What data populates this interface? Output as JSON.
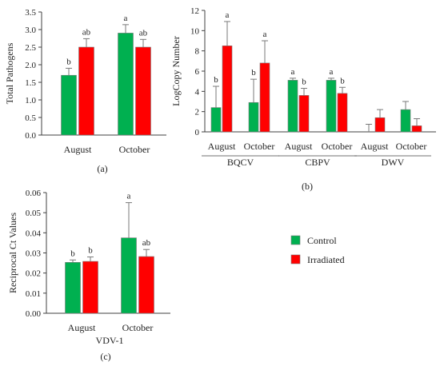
{
  "colors": {
    "control": "#00b050",
    "irradiated": "#ff0000",
    "bar_edge": "#7a7a7a",
    "axis": "#404040",
    "error": "#7a7a7a"
  },
  "legend": [
    {
      "name": "Control",
      "color": "#00b050"
    },
    {
      "name": "Irradiated",
      "color": "#ff0000"
    }
  ],
  "chart_data": [
    {
      "id": "a",
      "panel_label": "(a)",
      "type": "bar",
      "ylabel": "Total Pathogens",
      "ylim": [
        0,
        3.5
      ],
      "yticks": [
        "0.0",
        "0.5",
        "1.0",
        "1.5",
        "2.0",
        "2.5",
        "3.0",
        "3.5"
      ],
      "groups": [
        {
          "label": "August",
          "series": [
            {
              "name": "Control",
              "value": 1.7,
              "err": 0.2,
              "sig": "b"
            },
            {
              "name": "Irradiated",
              "value": 2.5,
              "err": 0.24,
              "sig": "ab"
            }
          ]
        },
        {
          "label": "October",
          "series": [
            {
              "name": "Control",
              "value": 2.9,
              "err": 0.24,
              "sig": "a"
            },
            {
              "name": "Irradiated",
              "value": 2.5,
              "err": 0.22,
              "sig": "ab"
            }
          ]
        }
      ],
      "virus_groups": []
    },
    {
      "id": "b",
      "panel_label": "(b)",
      "type": "bar",
      "ylabel": "LogCopy Number",
      "ylim": [
        0,
        12
      ],
      "yticks": [
        "0",
        "2",
        "4",
        "6",
        "8",
        "10",
        "12"
      ],
      "groups": [
        {
          "label": "August",
          "series": [
            {
              "name": "Control",
              "value": 2.4,
              "err": 2.1,
              "sig": "b"
            },
            {
              "name": "Irradiated",
              "value": 8.5,
              "err": 2.4,
              "sig": "a"
            }
          ]
        },
        {
          "label": "October",
          "series": [
            {
              "name": "Control",
              "value": 2.9,
              "err": 2.3,
              "sig": "b"
            },
            {
              "name": "Irradiated",
              "value": 6.8,
              "err": 2.2,
              "sig": "a"
            }
          ]
        },
        {
          "label": "August",
          "series": [
            {
              "name": "Control",
              "value": 5.1,
              "err": 0.2,
              "sig": "a"
            },
            {
              "name": "Irradiated",
              "value": 3.6,
              "err": 0.7,
              "sig": "b"
            }
          ]
        },
        {
          "label": "October",
          "series": [
            {
              "name": "Control",
              "value": 5.1,
              "err": 0.2,
              "sig": "a"
            },
            {
              "name": "Irradiated",
              "value": 3.8,
              "err": 0.6,
              "sig": "b"
            }
          ]
        },
        {
          "label": "August",
          "series": [
            {
              "name": "Control",
              "value": 0.0,
              "err": 0.75,
              "sig": ""
            },
            {
              "name": "Irradiated",
              "value": 1.4,
              "err": 0.8,
              "sig": ""
            }
          ]
        },
        {
          "label": "October",
          "series": [
            {
              "name": "Control",
              "value": 2.2,
              "err": 0.8,
              "sig": ""
            },
            {
              "name": "Irradiated",
              "value": 0.6,
              "err": 0.7,
              "sig": ""
            }
          ]
        }
      ],
      "virus_groups": [
        {
          "label": "BQCV",
          "groups": [
            0,
            1
          ]
        },
        {
          "label": "CBPV",
          "groups": [
            2,
            3
          ]
        },
        {
          "label": "DWV",
          "groups": [
            4,
            5
          ]
        }
      ]
    },
    {
      "id": "c",
      "panel_label": "(c)",
      "type": "bar",
      "ylabel": "Reciprocal Ct Values",
      "ylim": [
        0,
        0.06
      ],
      "yticks": [
        "0.00",
        "0.01",
        "0.02",
        "0.03",
        "0.04",
        "0.05",
        "0.06"
      ],
      "groups": [
        {
          "label": "August",
          "series": [
            {
              "name": "Control",
              "value": 0.0253,
              "err": 0.0012,
              "sig": "b"
            },
            {
              "name": "Irradiated",
              "value": 0.0258,
              "err": 0.0022,
              "sig": "b"
            }
          ]
        },
        {
          "label": "October",
          "series": [
            {
              "name": "Control",
              "value": 0.0375,
              "err": 0.0175,
              "sig": "a"
            },
            {
              "name": "Irradiated",
              "value": 0.0282,
              "err": 0.0035,
              "sig": "ab"
            }
          ]
        }
      ],
      "virus_groups": [],
      "footer_label": "VDV-1"
    }
  ]
}
